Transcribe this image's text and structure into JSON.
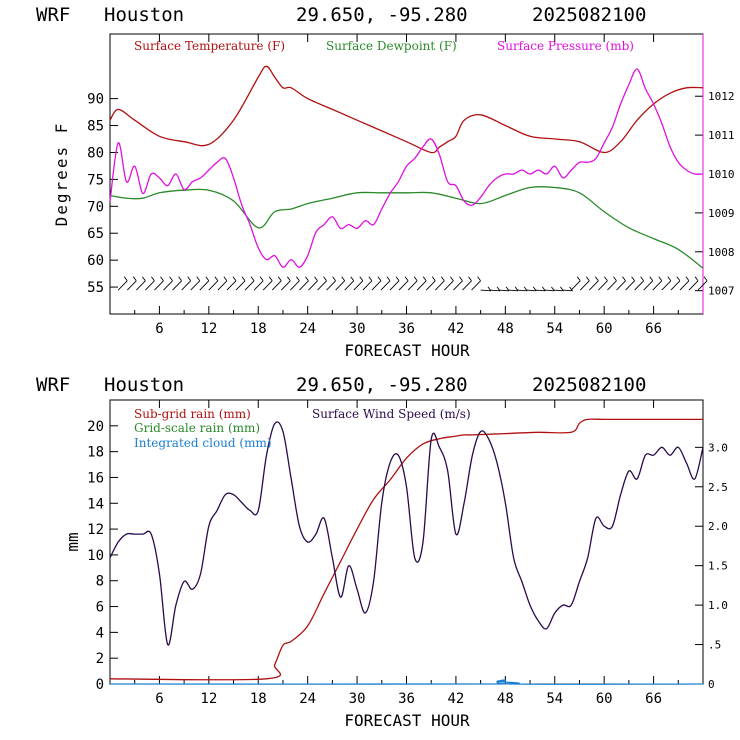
{
  "header": {
    "model": "WRF",
    "location": "Houston",
    "coords": "29.650, -95.280",
    "init": "2025082100"
  },
  "colors": {
    "temperature": "#b01010",
    "dewpoint": "#2a8a2a",
    "pressure": "#e010e0",
    "subgrid_rain": "#b01010",
    "grid_rain": "#2a8a2a",
    "cloud": "#1a7fd0",
    "wind": "#2a0a4a"
  },
  "chart_data": [
    {
      "type": "line",
      "xlabel": "FORECAST HOUR",
      "ylabel": "Degrees F",
      "xlim": [
        0,
        72
      ],
      "ylim": [
        50,
        102
      ],
      "xticks": [
        "6",
        "12",
        "18",
        "24",
        "30",
        "36",
        "42",
        "48",
        "54",
        "60",
        "66"
      ],
      "xtick_values": [
        6,
        12,
        18,
        24,
        30,
        36,
        42,
        48,
        54,
        60,
        66
      ],
      "yticks": [
        "55",
        "60",
        "65",
        "70",
        "75",
        "80",
        "85",
        "90"
      ],
      "ytick_values": [
        55,
        60,
        65,
        70,
        75,
        80,
        85,
        90
      ],
      "y2lim": [
        1006.4,
        1013.6
      ],
      "y2ticks": [
        "1007",
        "1008",
        "1009",
        "1010",
        "1011",
        "1012"
      ],
      "y2tick_values": [
        1007,
        1008,
        1009,
        1010,
        1011,
        1012
      ],
      "series": [
        {
          "name": "Surface Temperature (F)",
          "axis": "left",
          "x": [
            0,
            1,
            3,
            6,
            9,
            12,
            15,
            18,
            19,
            20,
            21,
            22,
            24,
            27,
            30,
            33,
            36,
            39,
            40,
            41,
            42,
            43,
            45,
            48,
            51,
            54,
            57,
            60,
            62,
            64,
            66,
            68,
            70,
            72
          ],
          "y": [
            86,
            88,
            86,
            83,
            82,
            81.5,
            86,
            94,
            96,
            94,
            92,
            92,
            90,
            88,
            86,
            84,
            82,
            80,
            81,
            82,
            83,
            86,
            87,
            85,
            83,
            82.5,
            82,
            80,
            82,
            86,
            89,
            91,
            92,
            92
          ]
        },
        {
          "name": "Surface Dewpoint (F)",
          "axis": "left",
          "x": [
            0,
            2,
            4,
            6,
            9,
            12,
            15,
            18,
            20,
            22,
            24,
            27,
            30,
            33,
            36,
            39,
            42,
            45,
            48,
            51,
            54,
            57,
            60,
            63,
            66,
            69,
            72
          ],
          "y": [
            72,
            71.5,
            71.5,
            72.5,
            73,
            73,
            71,
            66,
            69,
            69.5,
            70.5,
            71.5,
            72.5,
            72.5,
            72.5,
            72.5,
            71.5,
            70.5,
            72,
            73.5,
            73.5,
            72.5,
            69,
            66,
            64,
            62,
            58.5
          ]
        },
        {
          "name": "Surface Pressure (mb)",
          "axis": "right",
          "x": [
            0,
            1,
            2,
            3,
            4,
            5,
            6,
            7,
            8,
            9,
            10,
            11,
            12,
            13,
            14,
            15,
            16,
            17,
            18,
            19,
            20,
            21,
            22,
            23,
            24,
            25,
            26,
            27,
            28,
            29,
            30,
            31,
            32,
            33,
            34,
            35,
            36,
            37,
            38,
            39,
            40,
            41,
            42,
            43,
            44,
            45,
            46,
            47,
            48,
            49,
            50,
            51,
            52,
            53,
            54,
            55,
            56,
            57,
            58,
            59,
            60,
            61,
            62,
            63,
            64,
            65,
            66,
            67,
            68,
            69,
            70,
            71,
            72
          ],
          "y": [
            1009.3,
            1010.8,
            1009.8,
            1010.2,
            1009.5,
            1010.0,
            1009.9,
            1009.7,
            1010.0,
            1009.6,
            1009.8,
            1009.9,
            1010.1,
            1010.3,
            1010.4,
            1009.9,
            1009.2,
            1008.7,
            1008.1,
            1007.8,
            1007.9,
            1007.6,
            1007.8,
            1007.6,
            1007.9,
            1008.5,
            1008.7,
            1008.9,
            1008.6,
            1008.7,
            1008.6,
            1008.8,
            1008.7,
            1009.1,
            1009.5,
            1009.8,
            1010.2,
            1010.4,
            1010.7,
            1010.9,
            1010.5,
            1009.8,
            1009.7,
            1009.3,
            1009.2,
            1009.4,
            1009.7,
            1009.9,
            1010.0,
            1010.0,
            1010.1,
            1010.0,
            1010.1,
            1010.0,
            1010.2,
            1009.9,
            1010.1,
            1010.3,
            1010.3,
            1010.4,
            1010.8,
            1011.2,
            1011.8,
            1012.3,
            1012.7,
            1012.2,
            1011.8,
            1011.3,
            1010.7,
            1010.3,
            1010.1,
            1010.0,
            1010.0
          ]
        }
      ],
      "wind_barbs": "present"
    },
    {
      "type": "line",
      "xlabel": "FORECAST HOUR",
      "ylabel": "mm",
      "xlim": [
        0,
        72
      ],
      "ylim": [
        0,
        22
      ],
      "xticks": [
        "6",
        "12",
        "18",
        "24",
        "30",
        "36",
        "42",
        "48",
        "54",
        "60",
        "66"
      ],
      "xtick_values": [
        6,
        12,
        18,
        24,
        30,
        36,
        42,
        48,
        54,
        60,
        66
      ],
      "yticks": [
        "0",
        "2",
        "4",
        "6",
        "8",
        "10",
        "12",
        "14",
        "16",
        "18",
        "20"
      ],
      "ytick_values": [
        0,
        2,
        4,
        6,
        8,
        10,
        12,
        14,
        16,
        18,
        20
      ],
      "y2lim": [
        0,
        3.6
      ],
      "y2ticks": [
        "0",
        ".5",
        "1.0",
        "1.5",
        "2.0",
        "2.5",
        "3.0"
      ],
      "y2tick_values": [
        0,
        0.5,
        1.0,
        1.5,
        2.0,
        2.5,
        3.0
      ],
      "series": [
        {
          "name": "Sub-grid rain (mm)",
          "axis": "left",
          "x": [
            0,
            19,
            20,
            21,
            22,
            24,
            26,
            28,
            30,
            32,
            34,
            36,
            38,
            40,
            42,
            43,
            44,
            48,
            52,
            56,
            57,
            58,
            60,
            66,
            72
          ],
          "y": [
            0.4,
            0.4,
            1.5,
            3,
            3.3,
            4.5,
            7,
            9.5,
            12,
            14.3,
            15.8,
            17.5,
            18.6,
            19,
            19.2,
            19.3,
            19.3,
            19.4,
            19.5,
            19.5,
            20.2,
            20.5,
            20.5,
            20.5,
            20.5
          ]
        },
        {
          "name": "Surface Wind Speed (m/s)",
          "axis": "right",
          "x": [
            0,
            1,
            2,
            3,
            4,
            5,
            6,
            7,
            8,
            9,
            10,
            11,
            12,
            13,
            14,
            15,
            16,
            17,
            18,
            19,
            20,
            21,
            22,
            23,
            24,
            25,
            26,
            27,
            28,
            29,
            30,
            31,
            32,
            33,
            34,
            35,
            36,
            37,
            38,
            39,
            40,
            41,
            42,
            43,
            44,
            45,
            46,
            47,
            48,
            49,
            50,
            51,
            52,
            53,
            54,
            55,
            56,
            57,
            58,
            59,
            60,
            61,
            62,
            63,
            64,
            65,
            66,
            67,
            68,
            69,
            70,
            71,
            72
          ],
          "y": [
            1.6,
            1.8,
            1.9,
            1.9,
            1.9,
            1.9,
            1.4,
            0.5,
            1.0,
            1.3,
            1.2,
            1.4,
            2.0,
            2.2,
            2.4,
            2.4,
            2.3,
            2.2,
            2.2,
            2.9,
            3.3,
            3.2,
            2.6,
            2.0,
            1.8,
            1.9,
            2.1,
            1.6,
            1.1,
            1.5,
            1.2,
            0.9,
            1.3,
            2.3,
            2.8,
            2.9,
            2.5,
            1.6,
            1.8,
            3.1,
            3.0,
            2.7,
            1.9,
            2.3,
            2.9,
            3.2,
            3.1,
            2.8,
            2.3,
            1.6,
            1.3,
            1.0,
            0.8,
            0.7,
            0.9,
            1.0,
            1.0,
            1.3,
            1.6,
            2.1,
            2.0,
            2.0,
            2.4,
            2.7,
            2.6,
            2.9,
            2.9,
            3.0,
            2.9,
            3.0,
            2.8,
            2.6,
            3.0
          ]
        },
        {
          "name": "Grid-scale rain (mm)",
          "axis": "left",
          "x": [
            0,
            72
          ],
          "y": [
            0,
            0
          ]
        },
        {
          "name": "Integrated cloud (mm)",
          "axis": "left",
          "x": [
            0,
            46,
            47,
            48,
            49,
            72
          ],
          "y": [
            0,
            0,
            0.2,
            0.3,
            0,
            0
          ]
        }
      ]
    }
  ]
}
